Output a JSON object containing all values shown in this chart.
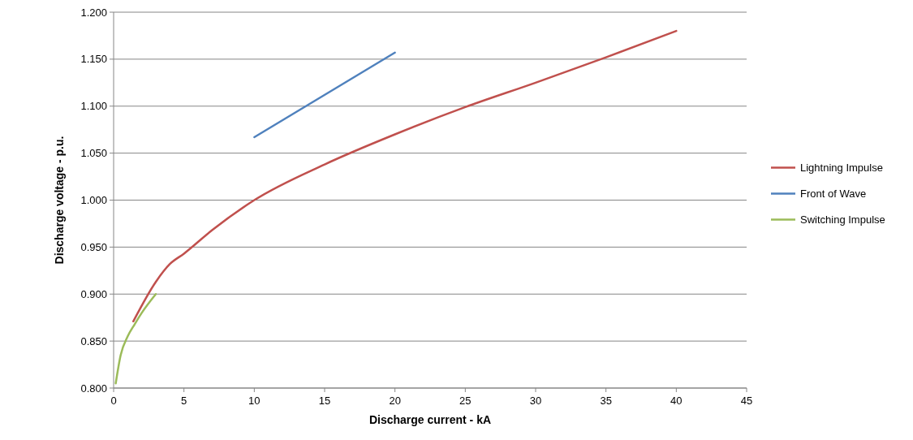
{
  "chart_data": {
    "type": "line",
    "xlabel": "Discharge current - kA",
    "ylabel": "Discharge voltage - p.u.",
    "xlim": [
      0,
      45
    ],
    "xticks": [
      0,
      5,
      10,
      15,
      20,
      25,
      30,
      35,
      40,
      45
    ],
    "ylim": [
      0.8,
      1.2
    ],
    "yticks": [
      {
        "value": 0.8,
        "label": "0.800"
      },
      {
        "value": 0.85,
        "label": "0.850"
      },
      {
        "value": 0.9,
        "label": "0.900"
      },
      {
        "value": 0.95,
        "label": "0.950"
      },
      {
        "value": 1.0,
        "label": "1.000"
      },
      {
        "value": 1.05,
        "label": "1.050"
      },
      {
        "value": 1.1,
        "label": "1.100"
      },
      {
        "value": 1.15,
        "label": "1.150"
      },
      {
        "value": 1.2,
        "label": "1.200"
      }
    ],
    "grid": "y",
    "legend": "right",
    "marker": "none",
    "line_style": "solid",
    "series": [
      {
        "name": "Lightning Impulse",
        "color": "#c0504d",
        "x": [
          1.4,
          3,
          4,
          5,
          7,
          10,
          15,
          20,
          25,
          30,
          35,
          40
        ],
        "values": [
          0.871,
          0.913,
          0.932,
          0.943,
          0.968,
          1.0,
          1.038,
          1.07,
          1.099,
          1.125,
          1.152,
          1.18
        ]
      },
      {
        "name": "Front of Wave",
        "color": "#4f81bd",
        "x": [
          10,
          20
        ],
        "values": [
          1.067,
          1.157
        ]
      },
      {
        "name": "Switching Impulse",
        "color": "#9bbb59",
        "x": [
          0.15,
          0.5,
          1,
          1.5,
          2,
          3
        ],
        "values": [
          0.805,
          0.835,
          0.855,
          0.868,
          0.88,
          0.9
        ]
      }
    ]
  }
}
